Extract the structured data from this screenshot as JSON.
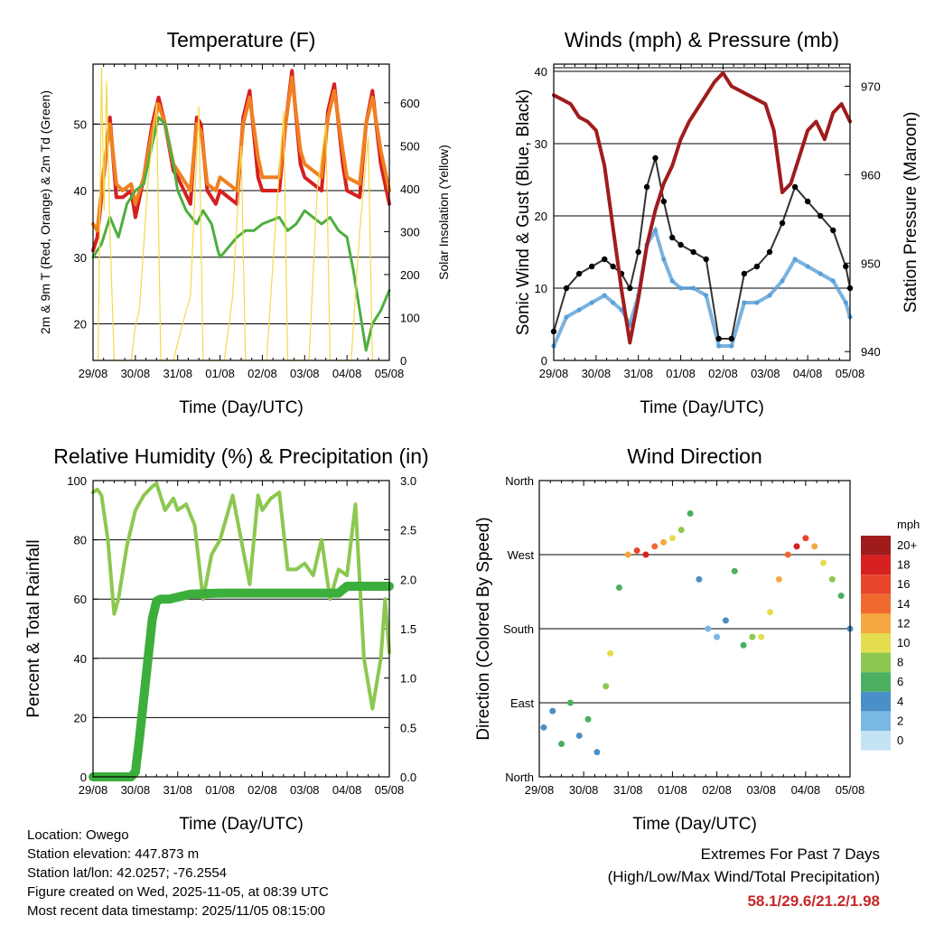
{
  "info": {
    "location": "Location: Owego",
    "elevation": "Station elevation: 447.873 m",
    "latlon": "Station lat/lon: 42.0257; -76.2554",
    "created": "Figure created on Wed, 2025-11-05, at 08:39 UTC",
    "recent": "Most recent data timestamp: 2025/11/05 08:15:00"
  },
  "extremes": {
    "title": "Extremes For Past 7 Days",
    "subtitle": "(High/Low/Max Wind/Total Precipitation)",
    "values": "58.1/29.6/21.2/1.98",
    "color": "#c62828"
  },
  "colors": {
    "temp2m": "#d62020",
    "temp9m": "#f08020",
    "dewpoint": "#4caf40",
    "solar": "#f5d94a",
    "wind": "#5a9fd6",
    "gust": "#000000",
    "pressure": "#a01c1c",
    "rh": "#8cc850",
    "rain": "#3cae3c"
  },
  "chart_data": [
    {
      "type": "line",
      "title": "Temperature (F)",
      "xlabel": "Time (Day/UTC)",
      "ylabel": "2m & 9m T (Red, Orange) & 2m Td (Green)",
      "y2label": "Solar Insolation (Yellow)",
      "x_ticks": [
        "29/08",
        "30/08",
        "31/08",
        "01/08",
        "02/08",
        "03/08",
        "04/08",
        "05/08"
      ],
      "ylim": [
        14.5,
        59
      ],
      "y_ticks": [
        20,
        30,
        40,
        50
      ],
      "y2lim": [
        0,
        690
      ],
      "y2_ticks": [
        0,
        100,
        200,
        300,
        400,
        500,
        600
      ],
      "series": [
        {
          "name": "2m T",
          "color": "#d62020",
          "x": [
            0,
            0.1,
            0.25,
            0.4,
            0.55,
            0.7,
            0.9,
            1.0,
            1.2,
            1.4,
            1.55,
            1.7,
            1.9,
            2.0,
            2.3,
            2.45,
            2.55,
            2.7,
            2.9,
            3.0,
            3.4,
            3.55,
            3.7,
            3.9,
            4.0,
            4.4,
            4.55,
            4.7,
            4.9,
            5.0,
            5.4,
            5.55,
            5.7,
            5.9,
            6.0,
            6.3,
            6.45,
            6.6,
            6.8,
            7.0
          ],
          "values": [
            31,
            33,
            42,
            51,
            39,
            39,
            40,
            36,
            42,
            50,
            54,
            50,
            43,
            42,
            38,
            51,
            50,
            40,
            38,
            40,
            38,
            51,
            55,
            42,
            40,
            40,
            50,
            58,
            44,
            42,
            40,
            52,
            56,
            44,
            40,
            39,
            50,
            55,
            44,
            38
          ]
        },
        {
          "name": "9m T",
          "color": "#f08020",
          "x": [
            0,
            0.1,
            0.25,
            0.4,
            0.55,
            0.7,
            0.9,
            1.0,
            1.2,
            1.4,
            1.55,
            1.7,
            1.9,
            2.0,
            2.3,
            2.45,
            2.55,
            2.7,
            2.9,
            3.0,
            3.4,
            3.55,
            3.7,
            3.9,
            4.0,
            4.4,
            4.55,
            4.7,
            4.9,
            5.0,
            5.4,
            5.55,
            5.7,
            5.9,
            6.0,
            6.3,
            6.45,
            6.6,
            6.8,
            7.0
          ],
          "values": [
            35,
            34,
            43,
            50,
            41,
            40,
            41,
            38,
            42,
            49,
            53,
            50,
            44,
            43,
            40,
            50,
            49,
            41,
            40,
            42,
            40,
            50,
            54,
            45,
            42,
            42,
            50,
            57,
            46,
            44,
            42,
            51,
            55,
            46,
            42,
            41,
            50,
            54,
            46,
            40
          ]
        },
        {
          "name": "2m Td",
          "color": "#4caf40",
          "x": [
            0,
            0.2,
            0.4,
            0.6,
            0.8,
            1.0,
            1.2,
            1.4,
            1.55,
            1.7,
            1.9,
            2.0,
            2.2,
            2.45,
            2.6,
            2.8,
            2.95,
            3.0,
            3.4,
            3.6,
            3.8,
            4.0,
            4.4,
            4.6,
            4.8,
            5.0,
            5.4,
            5.6,
            5.8,
            6.0,
            6.15,
            6.3,
            6.45,
            6.6,
            6.8,
            7.0
          ],
          "values": [
            30,
            32,
            36,
            33,
            38,
            40,
            41,
            47,
            51,
            50,
            44,
            40,
            37,
            35,
            37,
            35,
            31,
            30,
            33,
            34,
            34,
            35,
            36,
            34,
            35,
            37,
            35,
            36,
            34,
            33,
            28,
            22,
            16,
            20,
            22,
            25
          ]
        },
        {
          "name": "Solar",
          "color": "#f5d94a",
          "axis": "y2",
          "x": [
            0,
            0.12,
            0.2,
            0.26,
            0.32,
            0.4,
            0.5,
            0.9,
            1.0,
            1.1,
            1.3,
            1.5,
            1.6,
            1.9,
            2.1,
            2.3,
            2.5,
            2.6,
            2.9,
            3.1,
            3.3,
            3.5,
            3.6,
            3.9,
            4.1,
            4.3,
            4.5,
            4.6,
            4.9,
            5.1,
            5.3,
            5.5,
            5.6,
            5.9,
            6.1,
            6.3,
            6.5,
            6.6,
            6.9,
            7.0
          ],
          "values": [
            0,
            0,
            680,
            350,
            650,
            300,
            0,
            0,
            80,
            120,
            420,
            600,
            0,
            0,
            80,
            150,
            590,
            0,
            0,
            0,
            150,
            500,
            0,
            0,
            0,
            300,
            580,
            0,
            0,
            0,
            400,
            550,
            0,
            0,
            0,
            300,
            520,
            0,
            0,
            0
          ]
        }
      ]
    },
    {
      "type": "scatter",
      "title": "Winds (mph) & Pressure (mb)",
      "xlabel": "Time (Day/UTC)",
      "ylabel": "Sonic Wind & Gust (Blue, Black)",
      "y2label": "Station Pressure (Maroon)",
      "x_ticks": [
        "29/08",
        "30/08",
        "31/08",
        "01/08",
        "02/08",
        "03/08",
        "04/08",
        "05/08"
      ],
      "ylim": [
        0,
        41
      ],
      "y_ticks": [
        0,
        10,
        20,
        30,
        40
      ],
      "y2lim": [
        939,
        972.5
      ],
      "y2_ticks": [
        940,
        950,
        960,
        970
      ],
      "series": [
        {
          "name": "Sonic Wind",
          "color": "#5a9fd6",
          "x": [
            0,
            0.3,
            0.6,
            0.9,
            1.2,
            1.4,
            1.6,
            1.8,
            2.0,
            2.2,
            2.4,
            2.6,
            2.8,
            3.0,
            3.3,
            3.6,
            3.9,
            4.2,
            4.5,
            4.8,
            5.1,
            5.4,
            5.7,
            6.0,
            6.3,
            6.6,
            6.9,
            7.0
          ],
          "values": [
            2,
            6,
            7,
            8,
            9,
            8,
            7,
            5,
            9,
            16,
            18,
            14,
            11,
            10,
            10,
            9,
            2,
            2,
            8,
            8,
            9,
            11,
            14,
            13,
            12,
            11,
            8,
            6
          ]
        },
        {
          "name": "Sonic Gust",
          "color": "#000000",
          "x": [
            0,
            0.3,
            0.6,
            0.9,
            1.2,
            1.4,
            1.6,
            1.8,
            2.0,
            2.2,
            2.4,
            2.6,
            2.8,
            3.0,
            3.3,
            3.6,
            3.9,
            4.2,
            4.5,
            4.8,
            5.1,
            5.4,
            5.7,
            6.0,
            6.3,
            6.6,
            6.9,
            7.0
          ],
          "values": [
            4,
            10,
            12,
            13,
            14,
            13,
            12,
            10,
            15,
            24,
            28,
            22,
            17,
            16,
            15,
            14,
            3,
            3,
            12,
            13,
            15,
            19,
            24,
            22,
            20,
            18,
            13,
            10
          ]
        },
        {
          "name": "Station Pressure",
          "color": "#a01c1c",
          "axis": "y2",
          "x": [
            0,
            0.2,
            0.4,
            0.6,
            0.8,
            1.0,
            1.2,
            1.4,
            1.6,
            1.8,
            2.0,
            2.2,
            2.4,
            2.6,
            2.8,
            3.0,
            3.2,
            3.4,
            3.6,
            3.8,
            4.0,
            4.2,
            4.4,
            4.6,
            4.8,
            5.0,
            5.2,
            5.4,
            5.6,
            5.8,
            6.0,
            6.2,
            6.4,
            6.6,
            6.8,
            7.0
          ],
          "values": [
            969,
            968.5,
            968,
            966.5,
            966,
            965,
            961,
            954,
            947,
            941,
            946,
            952,
            956,
            959,
            961,
            964,
            966,
            967.5,
            969,
            970.5,
            971.5,
            970,
            969.5,
            969,
            968.5,
            968,
            965,
            958,
            959,
            962,
            965,
            966,
            964,
            967,
            968,
            966
          ]
        }
      ]
    },
    {
      "type": "line",
      "title": "Relative Humidity (%) & Precipitation (in)",
      "xlabel": "Time (Day/UTC)",
      "ylabel": "Percent & Total Rainfall",
      "x_ticks": [
        "29/08",
        "30/08",
        "31/08",
        "01/08",
        "02/08",
        "03/08",
        "04/08",
        "05/08"
      ],
      "ylim": [
        0,
        100
      ],
      "y_ticks": [
        0,
        20,
        40,
        60,
        80,
        100
      ],
      "y2lim": [
        0,
        3.0
      ],
      "y2_ticks": [
        "0.0",
        "0.5",
        "1.0",
        "1.5",
        "2.0",
        "2.5",
        "3.0"
      ],
      "series": [
        {
          "name": "Relative Humidity",
          "color": "#8cc850",
          "x": [
            0,
            0.1,
            0.2,
            0.35,
            0.5,
            0.6,
            0.8,
            1.0,
            1.2,
            1.4,
            1.5,
            1.7,
            1.9,
            2.0,
            2.2,
            2.4,
            2.6,
            2.8,
            3.0,
            3.3,
            3.5,
            3.7,
            3.9,
            4.0,
            4.2,
            4.4,
            4.6,
            4.8,
            5.0,
            5.2,
            5.4,
            5.6,
            5.8,
            6.0,
            6.2,
            6.4,
            6.6,
            6.8,
            6.9,
            7.0
          ],
          "values": [
            96,
            97,
            95,
            80,
            55,
            60,
            78,
            90,
            95,
            98,
            99,
            90,
            94,
            90,
            92,
            85,
            60,
            75,
            80,
            95,
            80,
            65,
            95,
            90,
            94,
            96,
            70,
            70,
            72,
            68,
            80,
            60,
            70,
            68,
            92,
            40,
            23,
            40,
            60,
            42
          ]
        },
        {
          "name": "Total Rainfall",
          "color": "#3cae3c",
          "axis": "y2",
          "x": [
            0,
            0.9,
            1.0,
            1.1,
            1.2,
            1.3,
            1.4,
            1.5,
            1.6,
            1.8,
            2.0,
            2.3,
            3.0,
            4.0,
            5.0,
            5.8,
            6.0,
            7.0
          ],
          "values": [
            0,
            0,
            0.05,
            0.4,
            0.8,
            1.2,
            1.6,
            1.78,
            1.8,
            1.8,
            1.82,
            1.85,
            1.86,
            1.86,
            1.86,
            1.86,
            1.93,
            1.93
          ]
        }
      ]
    },
    {
      "type": "scatter",
      "title": "Wind Direction",
      "xlabel": "Time (Day/UTC)",
      "ylabel": "Direction (Colored By Speed)",
      "x_ticks": [
        "29/08",
        "30/08",
        "31/08",
        "01/08",
        "02/08",
        "03/08",
        "04/08",
        "05/08"
      ],
      "ylim": [
        0,
        360
      ],
      "y_ticks": [
        "North",
        "East",
        "South",
        "West",
        "North"
      ],
      "legend_title": "mph",
      "legend_labels": [
        "20+",
        "18",
        "16",
        "14",
        "12",
        "10",
        "8",
        "6",
        "4",
        "2",
        "0"
      ],
      "legend_colors": [
        "#a01c1c",
        "#d62020",
        "#e8452a",
        "#f06a30",
        "#f5a840",
        "#e4dd50",
        "#8cc850",
        "#4caf60",
        "#4a90c8",
        "#7ab8e4",
        "#c4e4f4"
      ],
      "points": [
        {
          "x": 0.1,
          "dir": 60,
          "spd": 4
        },
        {
          "x": 0.3,
          "dir": 80,
          "spd": 3
        },
        {
          "x": 0.5,
          "dir": 40,
          "spd": 5
        },
        {
          "x": 0.7,
          "dir": 90,
          "spd": 6
        },
        {
          "x": 0.9,
          "dir": 50,
          "spd": 4
        },
        {
          "x": 1.1,
          "dir": 70,
          "spd": 5
        },
        {
          "x": 1.3,
          "dir": 30,
          "spd": 3
        },
        {
          "x": 1.5,
          "dir": 110,
          "spd": 8
        },
        {
          "x": 1.6,
          "dir": 150,
          "spd": 10
        },
        {
          "x": 1.8,
          "dir": 230,
          "spd": 6
        },
        {
          "x": 2.0,
          "dir": 270,
          "spd": 12
        },
        {
          "x": 2.2,
          "dir": 275,
          "spd": 16
        },
        {
          "x": 2.4,
          "dir": 270,
          "spd": 18
        },
        {
          "x": 2.6,
          "dir": 280,
          "spd": 14
        },
        {
          "x": 2.8,
          "dir": 285,
          "spd": 12
        },
        {
          "x": 3.0,
          "dir": 290,
          "spd": 10
        },
        {
          "x": 3.2,
          "dir": 300,
          "spd": 8
        },
        {
          "x": 3.4,
          "dir": 320,
          "spd": 6
        },
        {
          "x": 3.6,
          "dir": 240,
          "spd": 3
        },
        {
          "x": 3.8,
          "dir": 180,
          "spd": 2
        },
        {
          "x": 4.0,
          "dir": 170,
          "spd": 1
        },
        {
          "x": 4.2,
          "dir": 190,
          "spd": 3
        },
        {
          "x": 4.4,
          "dir": 250,
          "spd": 6
        },
        {
          "x": 4.6,
          "dir": 160,
          "spd": 5
        },
        {
          "x": 4.8,
          "dir": 170,
          "spd": 7
        },
        {
          "x": 5.0,
          "dir": 170,
          "spd": 9
        },
        {
          "x": 5.2,
          "dir": 200,
          "spd": 10
        },
        {
          "x": 5.4,
          "dir": 240,
          "spd": 12
        },
        {
          "x": 5.6,
          "dir": 270,
          "spd": 14
        },
        {
          "x": 5.8,
          "dir": 280,
          "spd": 18
        },
        {
          "x": 6.0,
          "dir": 290,
          "spd": 16
        },
        {
          "x": 6.2,
          "dir": 280,
          "spd": 12
        },
        {
          "x": 6.4,
          "dir": 260,
          "spd": 10
        },
        {
          "x": 6.6,
          "dir": 240,
          "spd": 8
        },
        {
          "x": 6.8,
          "dir": 220,
          "spd": 6
        },
        {
          "x": 7.0,
          "dir": 180,
          "spd": 4
        }
      ]
    }
  ]
}
